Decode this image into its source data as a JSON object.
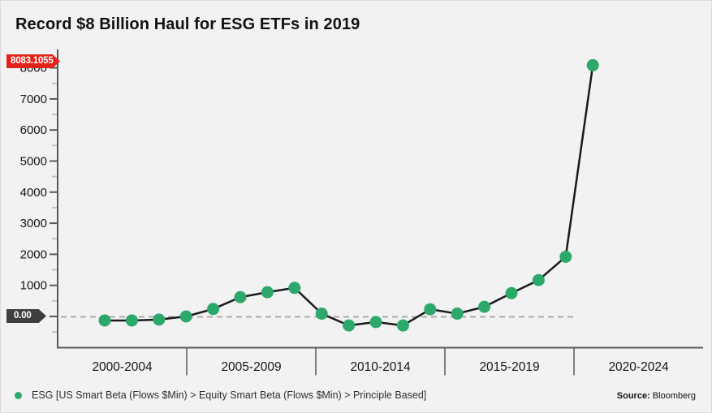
{
  "title": "Record $8 Billion Haul for ESG ETFs in 2019",
  "badges": {
    "last_value": "8083.1055",
    "zero_line": "0.00"
  },
  "legend": {
    "marker": "green-dot-icon",
    "label": "ESG [US Smart Beta (Flows $Min) > Equity Smart Beta (Flows $Min) > Principle Based]"
  },
  "source": {
    "prefix": "Source:",
    "value": "Bloomberg"
  },
  "colors": {
    "background": "#F2F2F2",
    "accent_green": "#2CA86B",
    "series_line": "#1A1A1A",
    "badge_red": "#E2231A",
    "badge_dark": "#3F3F3F",
    "axis": "#5A5A5C",
    "minor_tick": "#C3C3C3",
    "zero_dash": "#ABABAB",
    "tick_text": "#161616"
  },
  "chart_data": {
    "type": "line",
    "title": "Record $8 Billion Haul for ESG ETFs in 2019",
    "xlabel": "",
    "ylabel": "",
    "categories": [
      "2000-2004",
      "2005-2009",
      "2010-2014",
      "2015-2019",
      "2020-2024"
    ],
    "x": [
      2001,
      2002,
      2003,
      2004,
      2005,
      2006,
      2007,
      2008,
      2009,
      2010,
      2011,
      2012,
      2013,
      2014,
      2015,
      2016,
      2017,
      2018,
      2019
    ],
    "series": [
      {
        "name": "ESG [US Smart Beta (Flows $Min) > Equity Smart Beta (Flows $Min) > Principle Based]",
        "values": [
          -130,
          -130,
          -100,
          0,
          240,
          620,
          780,
          920,
          90,
          -290,
          -180,
          -290,
          230,
          90,
          310,
          750,
          1170,
          1920,
          8083.1055
        ]
      }
    ],
    "y_major_ticks": [
      0,
      1000,
      2000,
      3000,
      4000,
      5000,
      6000,
      7000,
      8000
    ],
    "y_minor_ticks": [
      -500,
      500,
      1500,
      2500,
      3500,
      4500,
      5500,
      6500,
      7500
    ],
    "ylim": [
      -1000,
      8600
    ],
    "last_value_marker": 8083.1055,
    "zero_line": {
      "value": 0,
      "style": "dashed"
    },
    "grid": false,
    "legend_position": "bottom-left"
  }
}
